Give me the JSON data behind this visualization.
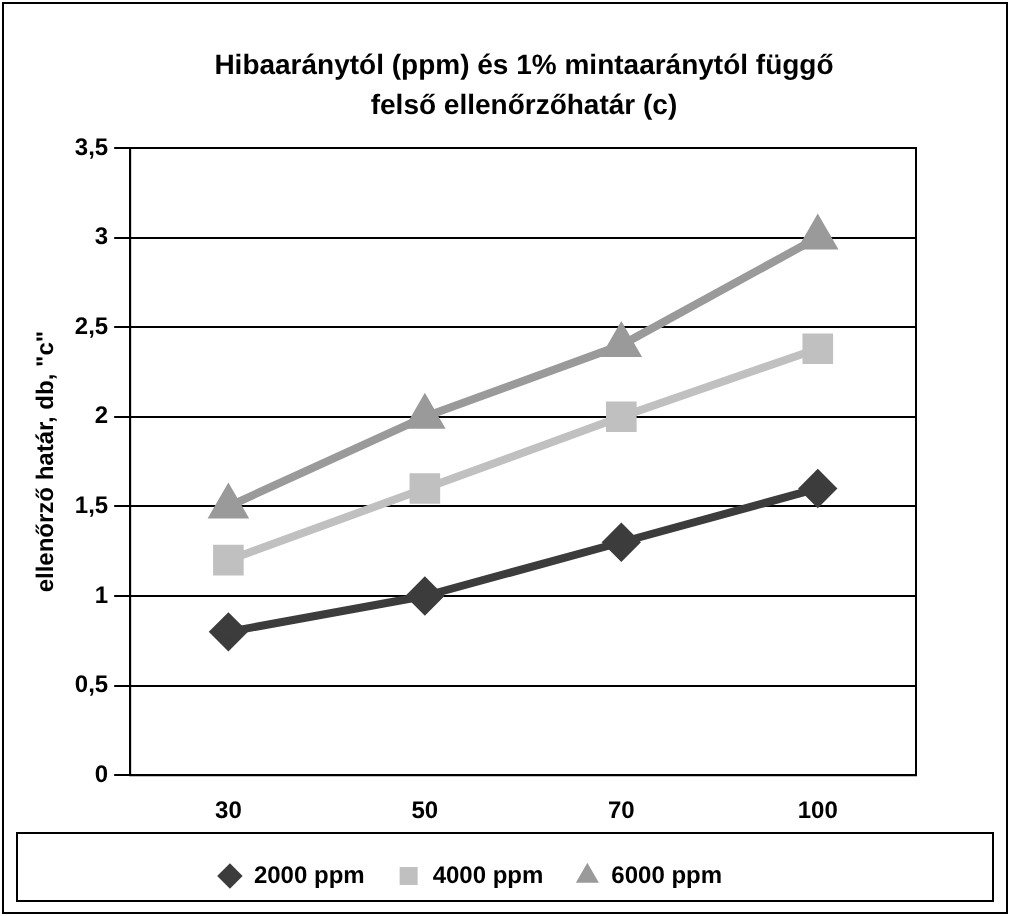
{
  "chart_data": {
    "type": "line",
    "title": "Hibaaránytól (ppm) és 1% mintaaránytól függő felső ellenőrzőhatár (c)",
    "ylabel": "ellenőrző határ, db, \"c\"",
    "categories": [
      "30",
      "50",
      "70",
      "100"
    ],
    "series": [
      {
        "name": "2000 ppm",
        "color": "#3c3c3c",
        "marker": "diamond",
        "values": [
          0.8,
          1.0,
          1.3,
          1.6
        ]
      },
      {
        "name": "4000 ppm",
        "color": "#c0c0c0",
        "marker": "square",
        "values": [
          1.2,
          1.6,
          2.0,
          2.38
        ]
      },
      {
        "name": "6000 ppm",
        "color": "#9a9a9a",
        "marker": "triangle",
        "values": [
          1.5,
          2.0,
          2.4,
          3.0
        ]
      }
    ],
    "ylim": [
      0,
      3.5
    ],
    "yticks": [
      0,
      {
        "value": 0.5,
        "label": "0,5"
      },
      1,
      {
        "value": 1.5,
        "label": "1,5"
      },
      2,
      {
        "value": 2.5,
        "label": "2,5"
      },
      3,
      {
        "value": 3.5,
        "label": "3,5"
      }
    ],
    "grid": "y",
    "legend": "bottom"
  }
}
